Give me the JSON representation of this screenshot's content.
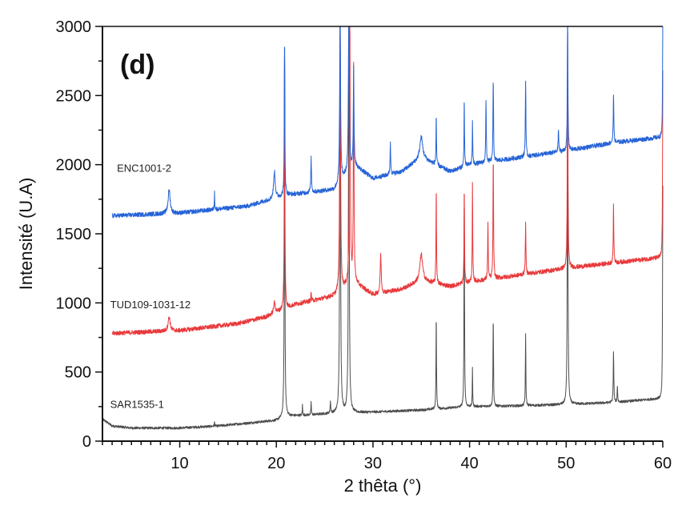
{
  "chart_data": {
    "type": "line",
    "panel_label": "(d)",
    "xlabel": "2 thêta (°)",
    "ylabel": "Intensité (U.A)",
    "xlim": [
      2,
      60
    ],
    "ylim": [
      0,
      3000
    ],
    "xticks": [
      10,
      20,
      30,
      40,
      50,
      60
    ],
    "yticks": [
      0,
      500,
      1000,
      1500,
      2000,
      2500,
      3000
    ],
    "x_minor_step": 1,
    "y_minor_step": 250,
    "grid": false,
    "series": [
      {
        "name": "SAR1535-1",
        "color": "#4d4d4d",
        "x_start": 2,
        "noise": 9,
        "label_at": [
          2.8,
          240
        ],
        "baseline": [
          [
            2,
            160
          ],
          [
            3,
            110
          ],
          [
            5,
            95
          ],
          [
            10,
            95
          ],
          [
            14,
            110
          ],
          [
            20,
            150
          ],
          [
            21,
            180
          ],
          [
            26,
            200
          ],
          [
            30,
            210
          ],
          [
            35,
            225
          ],
          [
            40,
            250
          ],
          [
            45,
            255
          ],
          [
            50,
            265
          ],
          [
            55,
            280
          ],
          [
            60,
            310
          ]
        ],
        "peaks": [
          [
            20.85,
            2920,
            0.07
          ],
          [
            26.6,
            3200,
            0.09
          ],
          [
            27.5,
            3200,
            0.09
          ],
          [
            36.55,
            920,
            0.06
          ],
          [
            39.45,
            1850,
            0.06
          ],
          [
            40.3,
            530,
            0.05
          ],
          [
            42.45,
            910,
            0.06
          ],
          [
            45.8,
            770,
            0.06
          ],
          [
            50.15,
            3100,
            0.07
          ],
          [
            54.9,
            650,
            0.07
          ],
          [
            55.3,
            400,
            0.06
          ],
          [
            60,
            1850,
            0.06
          ],
          [
            22.7,
            260,
            0.05
          ],
          [
            23.6,
            290,
            0.05
          ],
          [
            25.6,
            280,
            0.08
          ],
          [
            13.6,
            140,
            0.05
          ]
        ]
      },
      {
        "name": "TUD109-1031-12",
        "color": "#e8393b",
        "x_start": 3,
        "noise": 16,
        "label_at": [
          2.8,
          960
        ],
        "baseline": [
          [
            3,
            780
          ],
          [
            10,
            800
          ],
          [
            16,
            850
          ],
          [
            19,
            900
          ],
          [
            22,
            990
          ],
          [
            26,
            1050
          ],
          [
            28,
            1150
          ],
          [
            30,
            1060
          ],
          [
            33,
            1100
          ],
          [
            35,
            1160
          ],
          [
            38,
            1120
          ],
          [
            40,
            1150
          ],
          [
            45,
            1200
          ],
          [
            50,
            1250
          ],
          [
            55,
            1290
          ],
          [
            60,
            1330
          ]
        ],
        "peaks": [
          [
            8.9,
            900,
            0.25
          ],
          [
            20.85,
            2930,
            0.07
          ],
          [
            26.6,
            3200,
            0.1
          ],
          [
            27.6,
            3200,
            0.1
          ],
          [
            28.0,
            2700,
            0.08
          ],
          [
            30.8,
            1350,
            0.12
          ],
          [
            35.0,
            1350,
            0.35
          ],
          [
            36.55,
            1860,
            0.06
          ],
          [
            39.45,
            1850,
            0.06
          ],
          [
            40.3,
            1860,
            0.06
          ],
          [
            41.9,
            1580,
            0.07
          ],
          [
            42.45,
            2050,
            0.07
          ],
          [
            45.8,
            1580,
            0.07
          ],
          [
            50.15,
            3100,
            0.07
          ],
          [
            54.9,
            1700,
            0.07
          ],
          [
            60,
            2680,
            0.06
          ],
          [
            19.8,
            1000,
            0.2
          ],
          [
            23.6,
            1080,
            0.06
          ]
        ]
      },
      {
        "name": "ENC1001-2",
        "color": "#2563d6",
        "x_start": 3,
        "noise": 16,
        "label_at": [
          3.5,
          1950
        ],
        "baseline": [
          [
            3,
            1630
          ],
          [
            10,
            1650
          ],
          [
            17,
            1700
          ],
          [
            21,
            1780
          ],
          [
            26,
            1820
          ],
          [
            28,
            2000
          ],
          [
            30,
            1900
          ],
          [
            33,
            1950
          ],
          [
            35,
            2050
          ],
          [
            38,
            1950
          ],
          [
            40,
            2000
          ],
          [
            45,
            2050
          ],
          [
            50,
            2100
          ],
          [
            55,
            2160
          ],
          [
            60,
            2200
          ]
        ],
        "peaks": [
          [
            8.9,
            1820,
            0.25
          ],
          [
            13.6,
            1820,
            0.05
          ],
          [
            19.8,
            1950,
            0.2
          ],
          [
            20.85,
            2930,
            0.07
          ],
          [
            23.6,
            2050,
            0.08
          ],
          [
            26.6,
            3200,
            0.1
          ],
          [
            27.5,
            3200,
            0.1
          ],
          [
            28.0,
            2720,
            0.08
          ],
          [
            31.8,
            2150,
            0.08
          ],
          [
            35.0,
            2200,
            0.35
          ],
          [
            36.55,
            2370,
            0.06
          ],
          [
            39.45,
            2490,
            0.06
          ],
          [
            40.3,
            2310,
            0.06
          ],
          [
            41.7,
            2470,
            0.07
          ],
          [
            42.45,
            2620,
            0.07
          ],
          [
            45.8,
            2620,
            0.07
          ],
          [
            49.2,
            2250,
            0.08
          ],
          [
            50.15,
            3100,
            0.07
          ],
          [
            54.9,
            2520,
            0.07
          ],
          [
            60,
            3100,
            0.06
          ]
        ]
      }
    ]
  }
}
